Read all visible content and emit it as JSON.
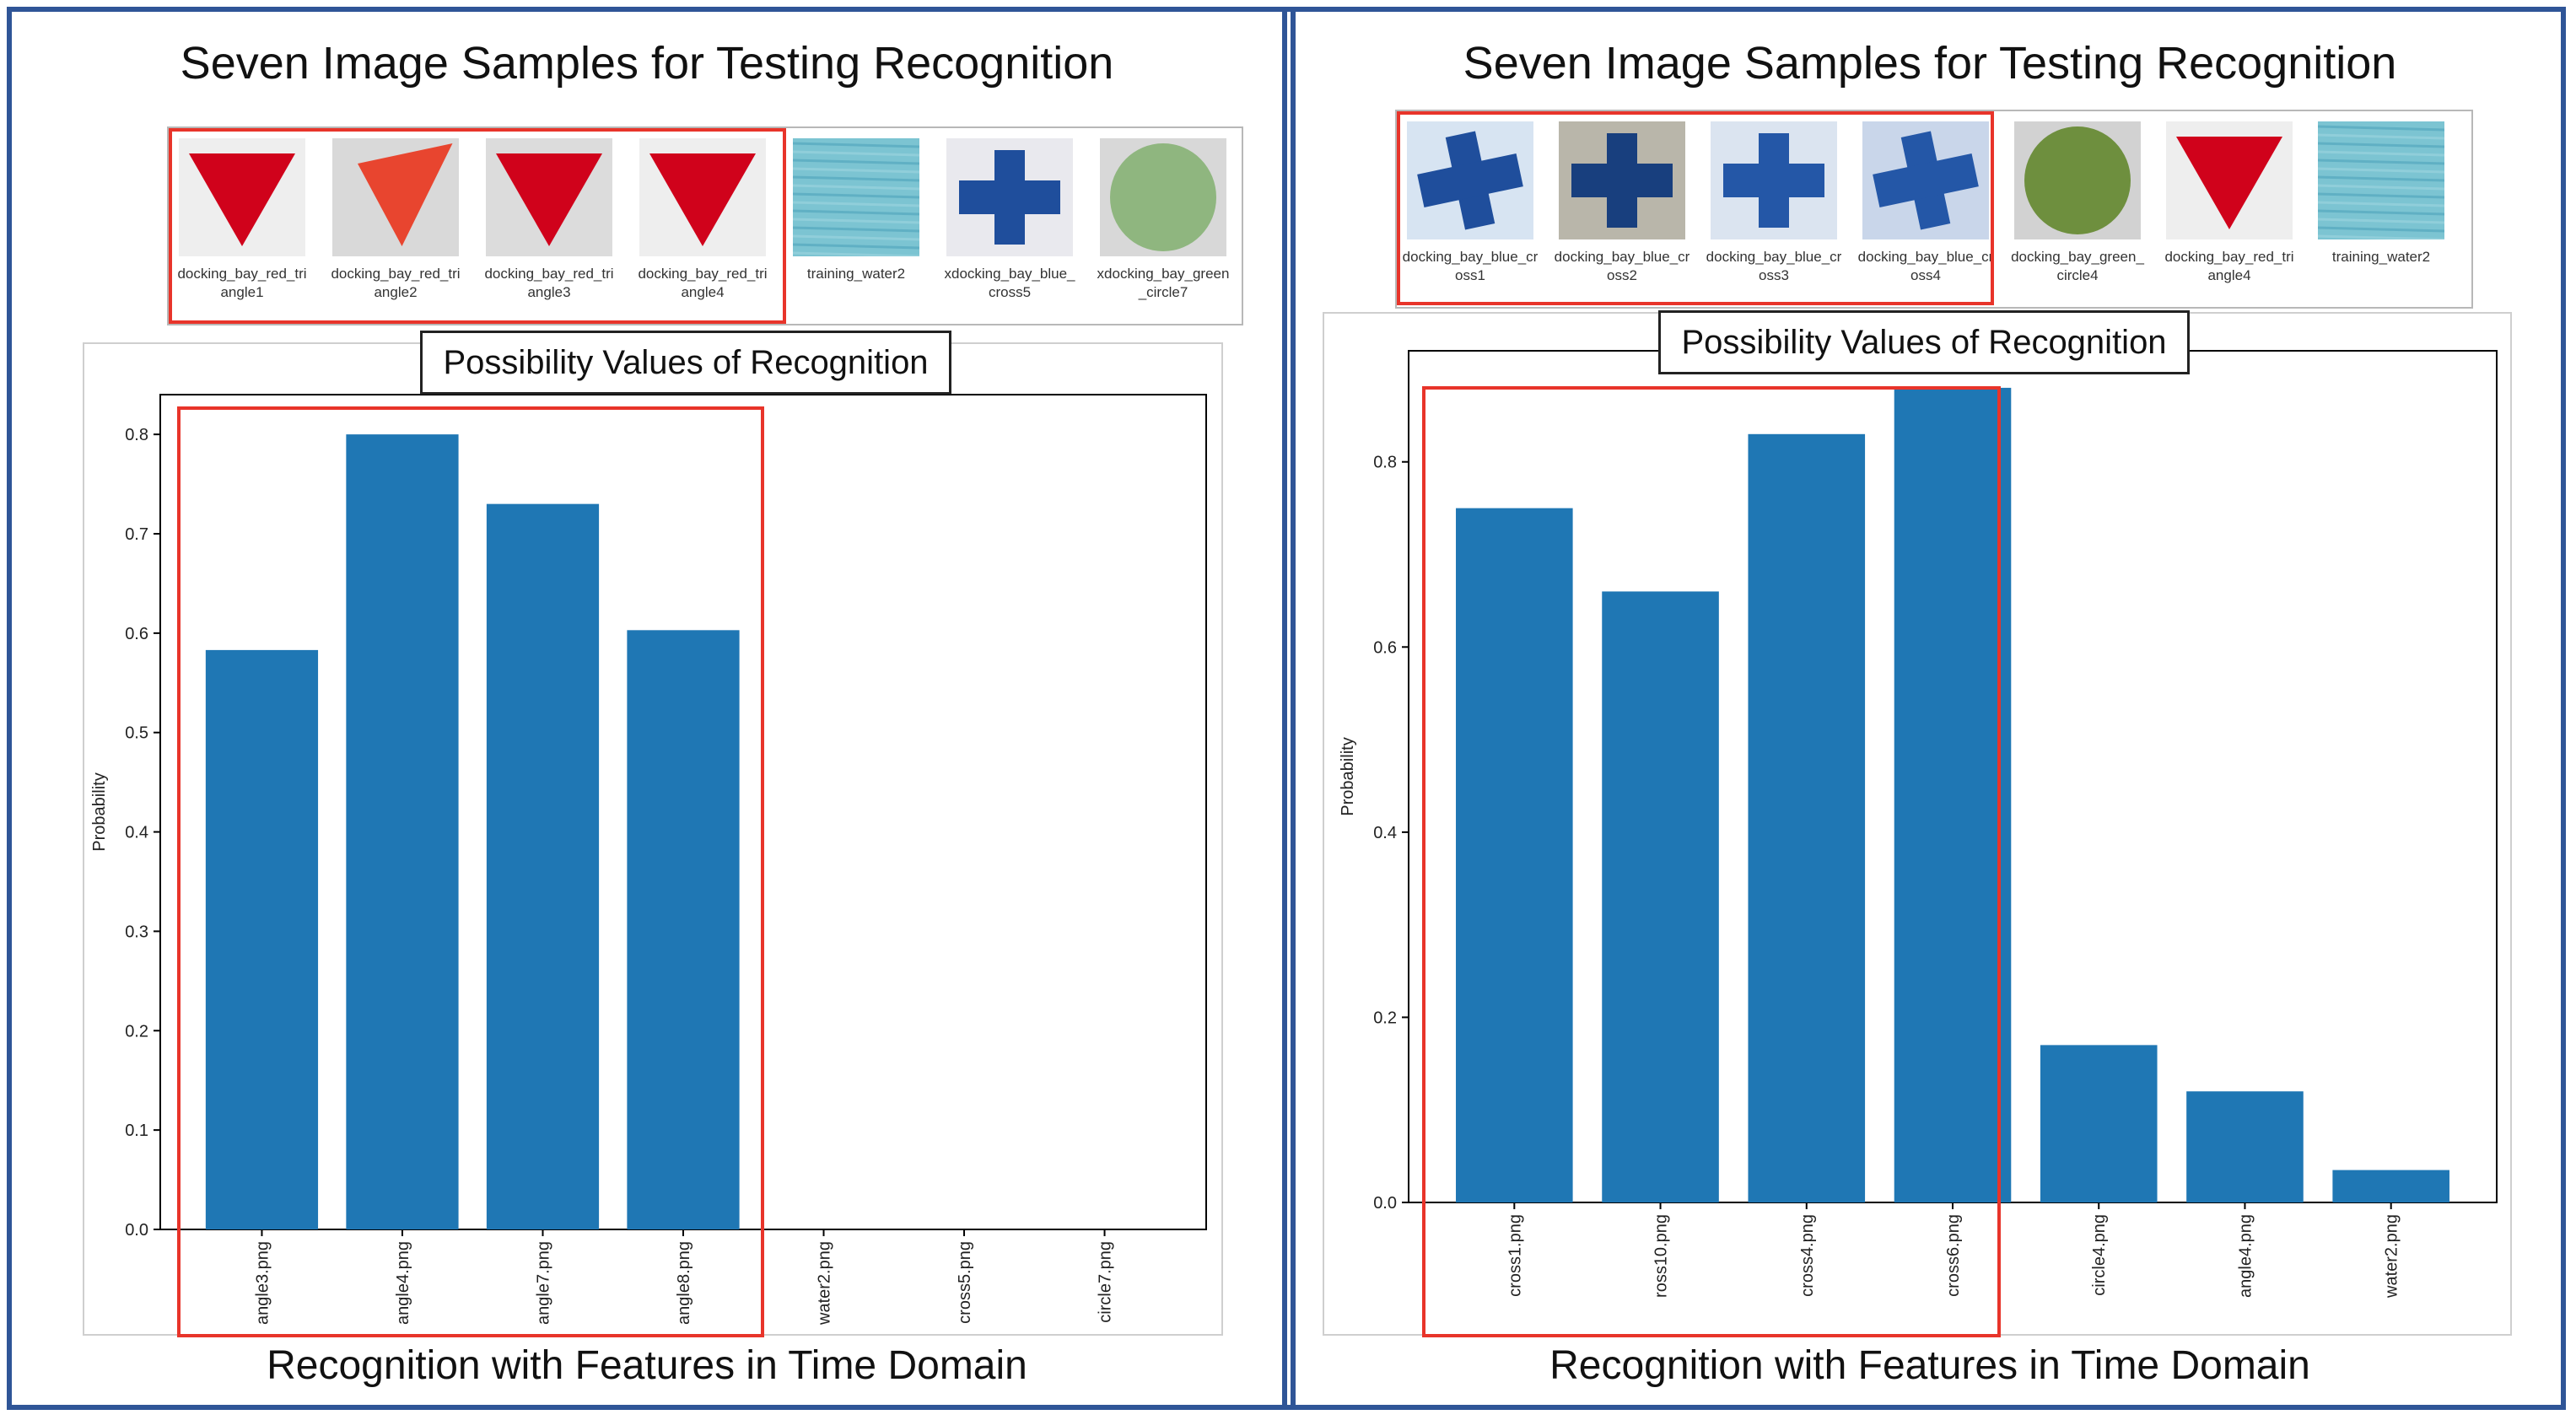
{
  "figure": {
    "panels": [
      {
        "panel_title": "Seven Image Samples for Testing Recognition",
        "samples": [
          {
            "label": "docking_bay_red_triangle1",
            "kind": "triangle",
            "color": "#d0021b",
            "bg": "#eeeeee"
          },
          {
            "label": "docking_bay_red_triangle2",
            "kind": "triangle-skew",
            "color": "#e8452f",
            "bg": "#d9d9d9"
          },
          {
            "label": "docking_bay_red_triangle3",
            "kind": "triangle",
            "color": "#d0021b",
            "bg": "#dcdcdc"
          },
          {
            "label": "docking_bay_red_triangle4",
            "kind": "triangle",
            "color": "#d0021b",
            "bg": "#eeeeee"
          },
          {
            "label": "training_water2",
            "kind": "water",
            "color": "#5fb3c7",
            "bg": "#7cc4d2"
          },
          {
            "label": "xdocking_bay_blue_cross5",
            "kind": "cross",
            "color": "#1f4e9c",
            "bg": "#e9e9ee"
          },
          {
            "label": "xdocking_bay_green_circle7",
            "kind": "circle",
            "color": "#8fb67f",
            "bg": "#d8d8d8"
          }
        ],
        "chart_title": "Possibility Values of Recognition",
        "caption": "Recognition with Features in Time Domain"
      },
      {
        "panel_title": "Seven Image Samples for Testing Recognition",
        "samples": [
          {
            "label": "docking_bay_blue_cross1",
            "kind": "cross-skew",
            "color": "#1f4e9c",
            "bg": "#d7e4f2"
          },
          {
            "label": "docking_bay_blue_cross2",
            "kind": "cross",
            "color": "#183f7e",
            "bg": "#b9b6aa"
          },
          {
            "label": "docking_bay_blue_cross3",
            "kind": "cross",
            "color": "#2457a7",
            "bg": "#dbe4f0"
          },
          {
            "label": "docking_bay_blue_cross4",
            "kind": "cross-skew",
            "color": "#2457a7",
            "bg": "#c9d6ea"
          },
          {
            "label": "docking_bay_green_circle4",
            "kind": "circle",
            "color": "#6e8f3e",
            "bg": "#d2d2d2"
          },
          {
            "label": "docking_bay_red_triangle4",
            "kind": "triangle",
            "color": "#d0021b",
            "bg": "#eeeeee"
          },
          {
            "label": "training_water2",
            "kind": "water",
            "color": "#5fb3c7",
            "bg": "#7cc4d2"
          }
        ],
        "chart_title": "Possibility Values of Recognition",
        "caption": "Recognition with Features in Time Domain"
      }
    ]
  },
  "chart_data": [
    {
      "type": "bar",
      "title": "Possibility Values of Recognition",
      "xlabel": "",
      "ylabel": "Probability",
      "categories": [
        "angle3.png",
        "angle4.png",
        "angle7.png",
        "angle8.png",
        "water2.png",
        "cross5.png",
        "circle7.png"
      ],
      "values": [
        0.583,
        0.8,
        0.73,
        0.603,
        0.0,
        0.0,
        0.0
      ],
      "ylim": [
        0,
        0.84
      ],
      "yticks": [
        "0.0",
        "0.1",
        "0.2",
        "0.3",
        "0.4",
        "0.5",
        "0.6",
        "0.7",
        "0.8"
      ],
      "bar_color": "#1f77b4",
      "grid": false
    },
    {
      "type": "bar",
      "title": "Possibility Values of Recognition",
      "xlabel": "",
      "ylabel": "Probability",
      "categories": [
        "cross1.png",
        "ross10.png",
        "cross4.png",
        "cross6.png",
        "circle4.png",
        "angle4.png",
        "water2.png"
      ],
      "values": [
        0.75,
        0.66,
        0.83,
        0.88,
        0.17,
        0.12,
        0.035
      ],
      "ylim": [
        0,
        0.92
      ],
      "yticks": [
        "0.0",
        "0.2",
        "0.4",
        "0.6",
        "0.8"
      ],
      "bar_color": "#1f77b4",
      "grid": false
    }
  ]
}
